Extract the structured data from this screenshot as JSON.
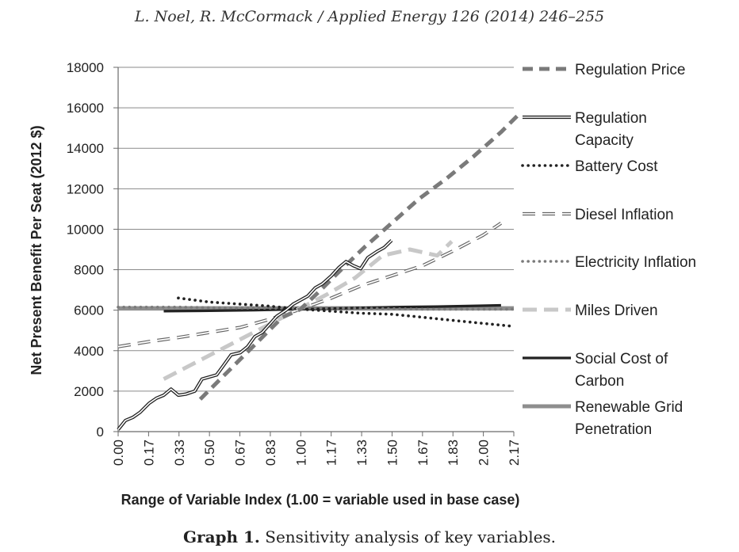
{
  "header": {
    "citation": "L. Noel, R. McCormack / Applied Energy 126 (2014) 246–255"
  },
  "caption": {
    "label": "Graph 1.",
    "text": " Sensitivity analysis of key variables."
  },
  "chart_data": {
    "type": "line",
    "xlabel": "Range of Variable Index (1.00 = variable used in base case)",
    "ylabel": "Net Present Benefit Per Seat (2012 $)",
    "x_tick_labels": [
      "0.00",
      "0.17",
      "0.33",
      "0.50",
      "0.67",
      "0.83",
      "1.00",
      "1.17",
      "1.33",
      "1.50",
      "1.67",
      "1.83",
      "2.00",
      "2.17"
    ],
    "ylim": [
      0,
      18000
    ],
    "yticks": [
      0,
      2000,
      4000,
      6000,
      8000,
      10000,
      12000,
      14000,
      16000,
      18000
    ],
    "xlim": [
      0,
      2.17
    ],
    "grid": "horizontal",
    "legend_placement": "right",
    "series": [
      {
        "name": "Regulation Price",
        "style": "dash-heavy",
        "color": "#7a7a7a",
        "x": [
          0.45,
          0.6,
          0.75,
          0.9,
          1.0,
          1.1,
          1.2,
          1.35,
          1.5,
          1.65,
          1.8,
          1.95,
          2.1,
          2.2
        ],
        "y": [
          1600,
          2950,
          4300,
          5650,
          6050,
          6900,
          7800,
          9100,
          10300,
          11500,
          12500,
          13600,
          14800,
          15700
        ]
      },
      {
        "name": "Regulation Capacity",
        "style": "double",
        "color": "#222222",
        "x": [
          0.0,
          0.04,
          0.08,
          0.12,
          0.17,
          0.21,
          0.25,
          0.29,
          0.33,
          0.37,
          0.42,
          0.46,
          0.5,
          0.54,
          0.58,
          0.62,
          0.67,
          0.71,
          0.75,
          0.79,
          0.83,
          0.87,
          0.92,
          0.96,
          1.0,
          1.04,
          1.08,
          1.12,
          1.17,
          1.21,
          1.25,
          1.29,
          1.33,
          1.37,
          1.42,
          1.46,
          1.5
        ],
        "y": [
          100,
          550,
          700,
          950,
          1400,
          1650,
          1800,
          2100,
          1800,
          1850,
          2000,
          2600,
          2700,
          2800,
          3300,
          3800,
          3900,
          4200,
          4700,
          4900,
          5300,
          5700,
          6000,
          6300,
          6500,
          6700,
          7100,
          7300,
          7700,
          8100,
          8400,
          8200,
          8050,
          8600,
          8900,
          9100,
          9450
        ]
      },
      {
        "name": "Battery Cost",
        "style": "dot-heavy",
        "color": "#222222",
        "x": [
          0.33,
          0.5,
          0.67,
          0.83,
          1.0,
          1.17,
          1.33,
          1.5,
          1.67,
          1.83,
          2.0,
          2.17
        ],
        "y": [
          6600,
          6400,
          6300,
          6200,
          6050,
          5950,
          5850,
          5800,
          5650,
          5500,
          5350,
          5200
        ]
      },
      {
        "name": "Diesel Inflation",
        "style": "dash-outline",
        "color": "#666666",
        "x": [
          0.0,
          0.17,
          0.33,
          0.5,
          0.67,
          0.83,
          1.0,
          1.17,
          1.33,
          1.5,
          1.67,
          1.83,
          2.0,
          2.1
        ],
        "y": [
          4200,
          4450,
          4650,
          4900,
          5150,
          5550,
          6050,
          6600,
          7200,
          7700,
          8200,
          8900,
          9700,
          10300
        ]
      },
      {
        "name": "Electricity Inflation",
        "style": "dot-light",
        "color": "#7a7a7a",
        "x": [
          0.0,
          0.33,
          0.67,
          1.0,
          1.33,
          1.67,
          2.0,
          2.17
        ],
        "y": [
          6150,
          6150,
          6100,
          6100,
          6100,
          6050,
          6050,
          6050
        ]
      },
      {
        "name": "Miles Driven",
        "style": "dash-light",
        "color": "#c8c8c8",
        "x": [
          0.25,
          0.4,
          0.55,
          0.7,
          0.85,
          1.0,
          1.15,
          1.3,
          1.45,
          1.6,
          1.75,
          1.83
        ],
        "y": [
          2600,
          3300,
          4000,
          4700,
          5400,
          6100,
          6800,
          7600,
          8700,
          9000,
          8700,
          9400
        ]
      },
      {
        "name": "Social Cost of Carbon",
        "style": "solid-dark",
        "color": "#222222",
        "x": [
          0.25,
          0.5,
          0.75,
          1.0,
          1.25,
          1.5,
          1.75,
          2.0,
          2.1
        ],
        "y": [
          5950,
          5970,
          6000,
          6050,
          6100,
          6150,
          6180,
          6220,
          6240
        ]
      },
      {
        "name": "Renewable Grid Penetration",
        "style": "solid-gray",
        "color": "#8e8e8e",
        "x": [
          0.0,
          0.5,
          1.0,
          1.5,
          2.0,
          2.17
        ],
        "y": [
          6100,
          6100,
          6100,
          6100,
          6100,
          6100
        ]
      }
    ]
  },
  "legend": {
    "items": [
      {
        "lines": [
          "Regulation Price"
        ]
      },
      {
        "lines": [
          "Regulation",
          "Capacity"
        ]
      },
      {
        "lines": [
          "Battery Cost"
        ]
      },
      {
        "lines": [
          "Diesel Inflation"
        ]
      },
      {
        "lines": [
          "Electricity Inflation"
        ]
      },
      {
        "lines": [
          "Miles Driven"
        ]
      },
      {
        "lines": [
          "Social Cost of",
          "Carbon"
        ]
      },
      {
        "lines": [
          "Renewable Grid",
          "Penetration"
        ]
      }
    ]
  }
}
